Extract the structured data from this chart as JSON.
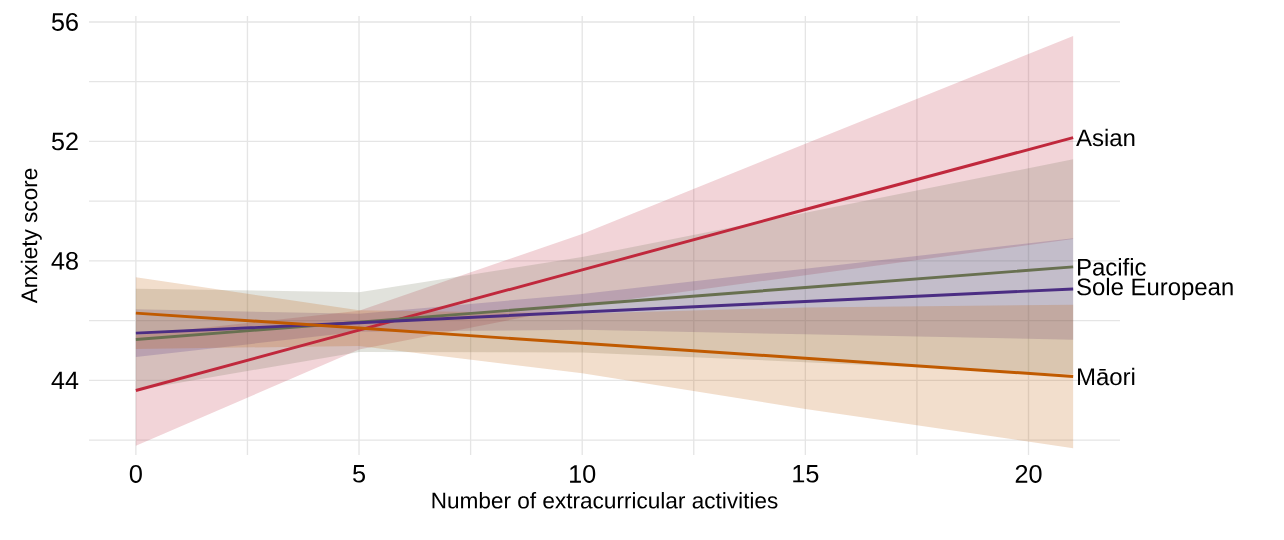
{
  "chart_data": {
    "type": "line",
    "xlabel": "Number of extracurricular activities",
    "ylabel": "Anxiety score",
    "x": [
      0,
      5,
      10,
      15,
      21
    ],
    "series": [
      {
        "name": "Asian",
        "color": "#c0283c",
        "values": [
          43.66,
          45.68,
          47.7,
          49.72,
          52.13
        ],
        "lower": [
          41.81,
          45.03,
          46.5,
          47.52,
          48.73
        ],
        "upper": [
          45.51,
          46.33,
          48.9,
          51.92,
          55.53
        ]
      },
      {
        "name": "Pacific",
        "color": "#687050",
        "values": [
          45.37,
          45.95,
          46.53,
          47.11,
          47.8
        ],
        "lower": [
          43.67,
          44.95,
          44.93,
          44.61,
          44.2
        ],
        "upper": [
          47.07,
          46.95,
          48.13,
          49.61,
          51.4
        ]
      },
      {
        "name": "Sole European",
        "color": "#4b2d83",
        "values": [
          45.58,
          45.93,
          46.29,
          46.64,
          47.06
        ],
        "lower": [
          44.78,
          45.63,
          45.69,
          45.54,
          45.36
        ],
        "upper": [
          46.38,
          46.23,
          46.89,
          47.74,
          48.76
        ]
      },
      {
        "name": "Māori",
        "color": "#c05a00",
        "values": [
          46.25,
          45.75,
          45.24,
          44.74,
          44.13
        ],
        "lower": [
          45.05,
          45.15,
          44.24,
          43.04,
          41.73
        ],
        "upper": [
          47.45,
          46.35,
          46.24,
          46.44,
          46.53
        ]
      }
    ],
    "xlim": [
      -1.05,
      22.05
    ],
    "ylim": [
      41.5,
      56.2
    ],
    "xticks": [
      0,
      {
        "value": 2.5,
        "label": null
      },
      5,
      {
        "value": 7.5,
        "label": null
      },
      10,
      {
        "value": 12.5,
        "label": null
      },
      15,
      {
        "value": 17.5,
        "label": null
      },
      20
    ],
    "yticks": [
      {
        "value": 42,
        "label": null
      },
      44,
      {
        "value": 46,
        "label": null
      },
      48,
      {
        "value": 50,
        "label": null
      },
      52,
      {
        "value": 54,
        "label": null
      },
      56
    ],
    "grid": true,
    "legend": false,
    "line_style": "solid",
    "marker": "none"
  }
}
